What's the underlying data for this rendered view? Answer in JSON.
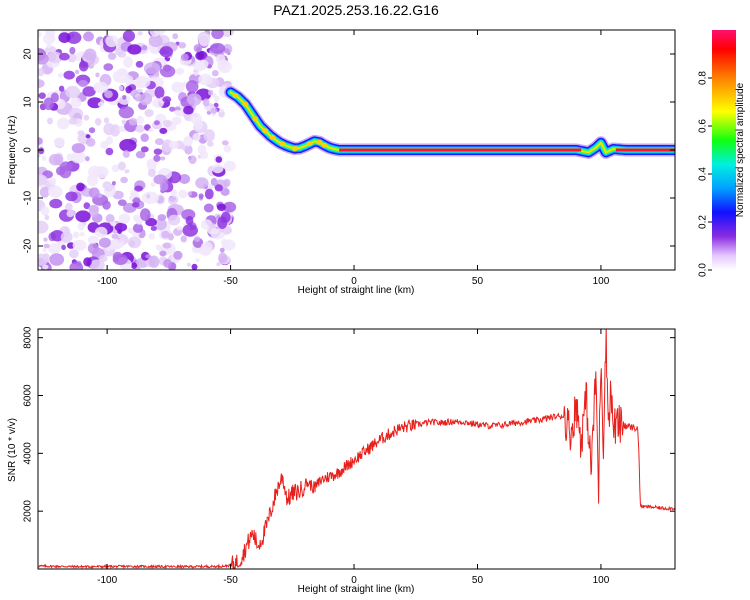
{
  "title": "PAZ1.2025.253.16.22.G16",
  "chart_data": [
    {
      "type": "heatmap",
      "title": "PAZ1.2025.253.16.22.G16",
      "xlabel": "Height of straight line (km)",
      "ylabel": "Frequency (Hz)",
      "xlim": [
        -128,
        130
      ],
      "ylim": [
        -25,
        25
      ],
      "xticks": [
        -100,
        -50,
        0,
        50,
        100
      ],
      "yticks": [
        -20,
        -10,
        0,
        10,
        20
      ],
      "noise_region_x": [
        -128,
        -50
      ],
      "ridge": {
        "x": [
          -50,
          -47,
          -44,
          -42,
          -40,
          -38,
          -36,
          -34,
          -32,
          -30,
          -28,
          -26,
          -24,
          -22,
          -20,
          -18,
          -16,
          -14,
          -12,
          -10,
          -8,
          -6,
          0,
          30,
          60,
          90,
          95,
          98,
          100,
          102,
          105,
          110,
          120,
          130
        ],
        "y": [
          12,
          11,
          9.5,
          8,
          6.5,
          5,
          4,
          3,
          2.2,
          1.5,
          1,
          0.6,
          0.3,
          0.4,
          0.8,
          1.3,
          1.8,
          1.6,
          1,
          0.5,
          0.2,
          0,
          0,
          0,
          0,
          0,
          -0.5,
          0.5,
          1.5,
          -0.5,
          0.2,
          0,
          0,
          0
        ]
      },
      "colorbar": {
        "label": "Normalized spectral amplitude",
        "range": [
          0,
          1
        ],
        "ticks": [
          0.0,
          0.2,
          0.4,
          0.6,
          0.8
        ],
        "tick_labels": [
          "0.0",
          "0.2",
          "0.4",
          "0.6",
          "0.8"
        ]
      }
    },
    {
      "type": "line",
      "xlabel": "Height of straight line (km)",
      "ylabel": "SNR (10 * v/v)",
      "xlim": [
        -128,
        130
      ],
      "ylim": [
        0,
        8300
      ],
      "xticks": [
        -100,
        -50,
        0,
        50,
        100
      ],
      "yticks": [
        2000,
        4000,
        6000,
        8000
      ],
      "series": [
        {
          "name": "SNR",
          "color": "#e8201c",
          "x": [
            -128,
            -110,
            -90,
            -70,
            -55,
            -50,
            -47,
            -45,
            -43,
            -41,
            -39,
            -37,
            -35,
            -33,
            -31,
            -29,
            -27,
            -25,
            -22,
            -19,
            -16,
            -13,
            -10,
            -7,
            -4,
            -1,
            2,
            5,
            8,
            11,
            14,
            17,
            20,
            23,
            26,
            29,
            32,
            35,
            40,
            45,
            50,
            55,
            60,
            65,
            70,
            75,
            80,
            85,
            88,
            90,
            92,
            94,
            96,
            98,
            99,
            100,
            101,
            102,
            103,
            104,
            105,
            107,
            110,
            113,
            115,
            116,
            117,
            120,
            125,
            130
          ],
          "values": [
            100,
            80,
            90,
            80,
            90,
            120,
            250,
            500,
            900,
            1250,
            800,
            1100,
            1600,
            2200,
            2800,
            3200,
            2400,
            2600,
            2700,
            3000,
            2800,
            3100,
            3200,
            3300,
            3500,
            3700,
            3900,
            4100,
            4300,
            4500,
            4650,
            4800,
            4900,
            4950,
            5000,
            5050,
            5080,
            5050,
            5100,
            5080,
            5000,
            4950,
            4980,
            5050,
            5100,
            5150,
            5250,
            5300,
            4700,
            5700,
            4400,
            6000,
            3400,
            6800,
            2500,
            7500,
            4200,
            8200,
            5100,
            6200,
            4900,
            5000,
            4950,
            4900,
            4850,
            2200,
            2150,
            2150,
            2100,
            2100
          ]
        }
      ]
    }
  ]
}
